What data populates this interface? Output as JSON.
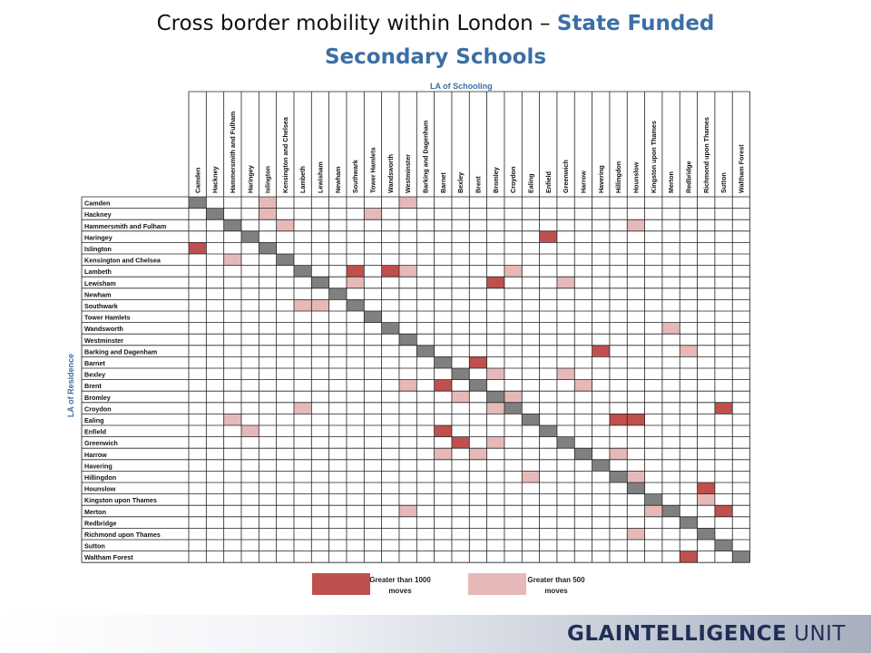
{
  "title": {
    "plain": "Cross border mobility within London – ",
    "accent_line1": "State Funded",
    "accent_line2": "Secondary Schools"
  },
  "axis": {
    "columns_label": "LA of Schooling",
    "rows_label": "LA of Residence"
  },
  "colors": {
    "diagonal": "#808080",
    "high": "#c0504d",
    "medium": "#e6b9b8",
    "grid": "#222222",
    "accent": "#3b6fa5"
  },
  "chart_data": {
    "type": "heatmap",
    "title": "",
    "xlabel": "LA of Schooling",
    "ylabel": "LA of Residence",
    "columns": [
      "Camden",
      "Hackney",
      "Hammersmith and Fulham",
      "Haringey",
      "Islington",
      "Kensington and Chelsea",
      "Lambeth",
      "Lewisham",
      "Newham",
      "Southwark",
      "Tower Hamlets",
      "Wandsworth",
      "Westminster",
      "Barking and Dagenham",
      "Barnet",
      "Bexley",
      "Brent",
      "Bromley",
      "Croydon",
      "Ealing",
      "Enfield",
      "Greenwich",
      "Harrow",
      "Havering",
      "Hillingdon",
      "Hounslow",
      "Kingston upon Thames",
      "Merton",
      "Redbridge",
      "Richmond upon Thames",
      "Sutton",
      "Waltham Forest"
    ],
    "rows": [
      "Camden",
      "Hackney",
      "Hammersmith and Fulham",
      "Haringey",
      "Islington",
      "Kensington and Chelsea",
      "Lambeth",
      "Lewisham",
      "Newham",
      "Southwark",
      "Tower Hamlets",
      "Wandsworth",
      "Westminster",
      "Barking and Dagenham",
      "Barnet",
      "Bexley",
      "Brent",
      "Bromley",
      "Croydon",
      "Ealing",
      "Enfield",
      "Greenwich",
      "Harrow",
      "Havering",
      "Hillingdon",
      "Hounslow",
      "Kingston upon Thames",
      "Merton",
      "Redbridge",
      "Richmond upon Thames",
      "Sutton",
      "Waltham Forest"
    ],
    "categories": [
      "Greater than 1000 moves",
      "Greater than 500 moves"
    ],
    "high_cells": [
      [
        4,
        0
      ],
      [
        3,
        20
      ],
      [
        6,
        9
      ],
      [
        6,
        11
      ],
      [
        7,
        17
      ],
      [
        13,
        23
      ],
      [
        14,
        16
      ],
      [
        16,
        14
      ],
      [
        18,
        30
      ],
      [
        19,
        24
      ],
      [
        19,
        25
      ],
      [
        20,
        14
      ],
      [
        21,
        15
      ],
      [
        25,
        29
      ],
      [
        27,
        30
      ],
      [
        31,
        28
      ]
    ],
    "medium_cells": [
      [
        0,
        4
      ],
      [
        0,
        12
      ],
      [
        1,
        4
      ],
      [
        1,
        10
      ],
      [
        2,
        5
      ],
      [
        2,
        25
      ],
      [
        5,
        2
      ],
      [
        6,
        12
      ],
      [
        6,
        18
      ],
      [
        7,
        9
      ],
      [
        7,
        21
      ],
      [
        9,
        6
      ],
      [
        9,
        7
      ],
      [
        11,
        27
      ],
      [
        13,
        28
      ],
      [
        15,
        17
      ],
      [
        15,
        21
      ],
      [
        16,
        12
      ],
      [
        16,
        22
      ],
      [
        17,
        15
      ],
      [
        17,
        18
      ],
      [
        18,
        6
      ],
      [
        18,
        17
      ],
      [
        19,
        2
      ],
      [
        20,
        3
      ],
      [
        21,
        17
      ],
      [
        22,
        14
      ],
      [
        22,
        16
      ],
      [
        22,
        24
      ],
      [
        24,
        19
      ],
      [
        24,
        25
      ],
      [
        26,
        29
      ],
      [
        27,
        12
      ],
      [
        27,
        26
      ],
      [
        29,
        25
      ]
    ]
  },
  "legend": {
    "high_label": "Greater than 1000\nmoves",
    "medium_label": "Greater than 500\nmoves"
  },
  "footer": {
    "logo_gla": "GLA",
    "logo_intel": "INTELLIGENCE",
    "logo_unit": " UNIT"
  }
}
